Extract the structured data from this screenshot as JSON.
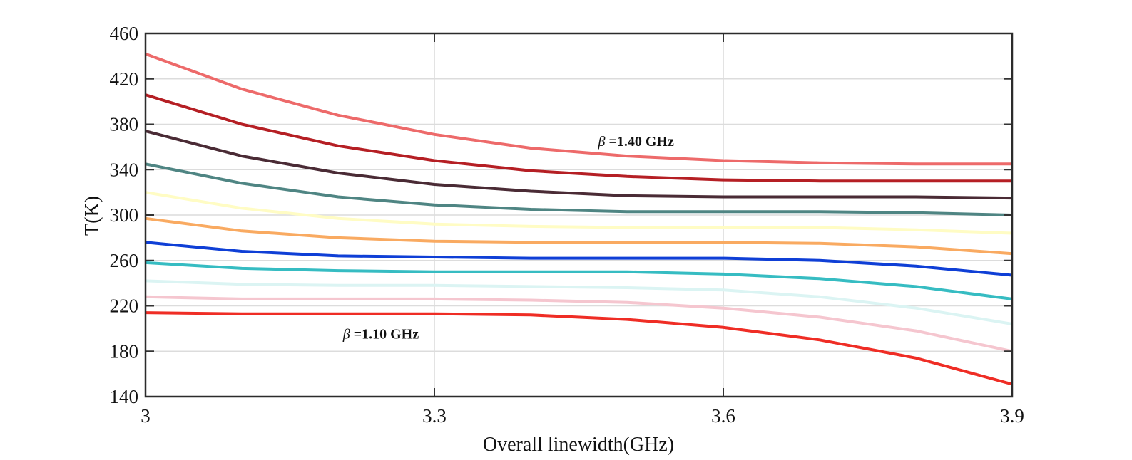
{
  "chart_data": {
    "type": "line",
    "xlabel": "Overall linewidth(GHz)",
    "ylabel": "T(K)",
    "xlim": [
      3,
      3.9
    ],
    "ylim": [
      140,
      460
    ],
    "xticks": [
      "3",
      "3.3",
      "3.6",
      "3.9"
    ],
    "yticks": [
      "140",
      "180",
      "220",
      "260",
      "300",
      "340",
      "380",
      "420",
      "460"
    ],
    "grid": true,
    "x": [
      3.0,
      3.1,
      3.2,
      3.3,
      3.4,
      3.5,
      3.6,
      3.7,
      3.8,
      3.9
    ],
    "series": [
      {
        "color": "#ed6a6a",
        "values": [
          442,
          411,
          388,
          371,
          359,
          352,
          348,
          346,
          345,
          345
        ]
      },
      {
        "color": "#b51f24",
        "values": [
          406,
          380,
          361,
          348,
          339,
          334,
          331,
          330,
          330,
          330
        ]
      },
      {
        "color": "#4a2b35",
        "values": [
          374,
          352,
          337,
          327,
          321,
          317,
          316,
          316,
          316,
          315
        ]
      },
      {
        "color": "#4f8583",
        "values": [
          345,
          328,
          316,
          309,
          305,
          303,
          303,
          303,
          302,
          300
        ]
      },
      {
        "color": "#fffcc4",
        "values": [
          320,
          306,
          297,
          292,
          290,
          289,
          289,
          289,
          287,
          284
        ]
      },
      {
        "color": "#f9aa61",
        "values": [
          297,
          286,
          280,
          277,
          276,
          276,
          276,
          275,
          272,
          266
        ]
      },
      {
        "color": "#0f3fd6",
        "values": [
          276,
          268,
          264,
          263,
          262,
          262,
          262,
          260,
          255,
          247
        ]
      },
      {
        "color": "#36bcc2",
        "values": [
          258,
          253,
          251,
          250,
          250,
          250,
          248,
          244,
          237,
          226
        ]
      },
      {
        "color": "#dbf4f3",
        "values": [
          242,
          239,
          238,
          238,
          237,
          236,
          234,
          228,
          218,
          204
        ]
      },
      {
        "color": "#f5c6cf",
        "values": [
          228,
          226,
          226,
          226,
          225,
          223,
          218,
          210,
          198,
          180
        ]
      },
      {
        "color": "#ef2d25",
        "values": [
          214,
          213,
          213,
          213,
          212,
          208,
          201,
          190,
          174,
          151
        ]
      }
    ],
    "annotations": [
      {
        "greek": "β",
        "text": " =1.40 GHz",
        "x": 3.47,
        "y": 361
      },
      {
        "greek": "β",
        "text": " =1.10 GHz",
        "x": 3.205,
        "y": 191
      }
    ]
  }
}
